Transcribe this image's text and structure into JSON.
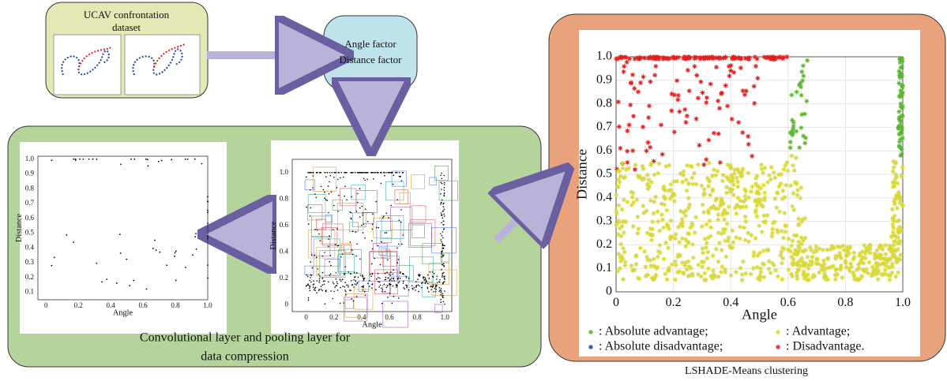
{
  "inputs": {
    "dataset": {
      "title": [
        "UCAV confrontation",
        "dataset"
      ]
    },
    "factors": {
      "label": [
        "Angle factor",
        "Distance factor"
      ]
    }
  },
  "compression": {
    "caption": [
      "Convolutional layer and pooling layer for",
      "data compression"
    ],
    "pooled_plot": {
      "xlabel": "Angle",
      "ylabel": "Distance",
      "xlim": [
        -0.05,
        1.0
      ],
      "ylim": [
        0.05,
        1.02
      ],
      "xticks": [
        0,
        0.2,
        0.4,
        0.6,
        0.8,
        {
          "value": 1,
          "label": "1.0"
        }
      ],
      "yticks": [
        0.1,
        0.2,
        0.3,
        0.4,
        0.5,
        0.6,
        0.7,
        0.8,
        0.9,
        {
          "value": 1,
          "label": "1.0"
        }
      ]
    },
    "conv_plot": {
      "xlabel": "Angle",
      "ylabel": "Distance",
      "xlim": [
        -0.1,
        1.05
      ],
      "ylim": [
        -0.05,
        1.1
      ],
      "xticks": [
        0,
        0.2,
        0.4,
        0.6,
        0.8,
        {
          "value": 1,
          "label": "1.0"
        }
      ],
      "yticks": [
        0,
        0.2,
        0.4,
        0.6,
        0.8,
        {
          "value": 1,
          "label": "1.0"
        }
      ]
    }
  },
  "clustering": {
    "caption": "LSHADE-Means clustering",
    "plot": {
      "xlabel": "Angle",
      "ylabel": "Distance",
      "xlim": [
        0,
        1
      ],
      "ylim": [
        0,
        1
      ],
      "xticks": [
        0,
        0.2,
        0.4,
        0.6,
        0.8,
        {
          "value": 1,
          "label": "1.0"
        }
      ],
      "yticks": [
        0,
        0.1,
        0.2,
        0.3,
        0.4,
        0.5,
        0.6,
        0.7,
        0.8,
        0.9,
        {
          "value": 1,
          "label": "1.0"
        }
      ]
    },
    "legend": [
      {
        "color": "#5cb531",
        "label": ": Absolute advantage;"
      },
      {
        "color": "#d8d83a",
        "label": ": Advantage;"
      },
      {
        "color": "#2140a0",
        "label": ": Absolute disadvantage;"
      },
      {
        "color": "#e02020",
        "label": ": Disadvantage."
      }
    ]
  }
}
